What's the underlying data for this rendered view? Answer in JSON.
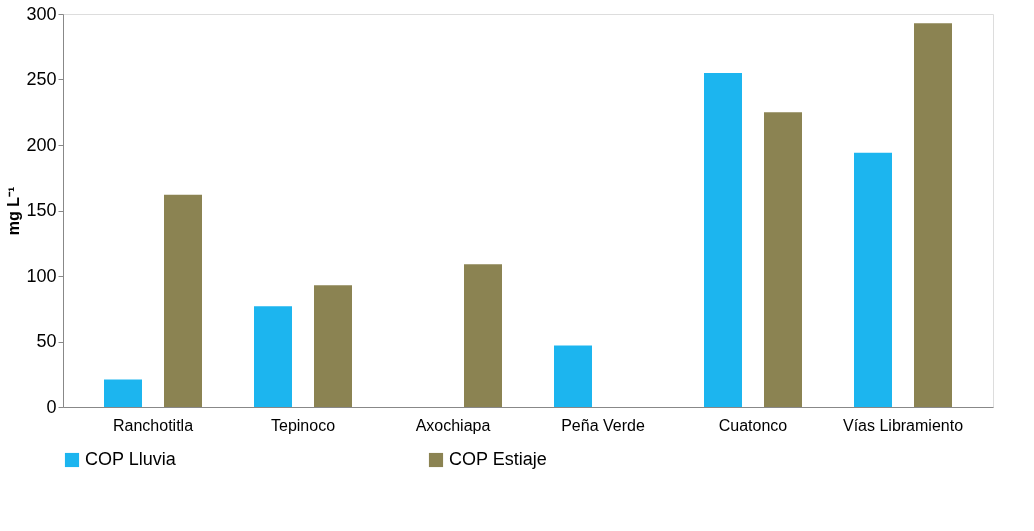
{
  "chart_data": {
    "type": "bar",
    "ylabel": "mg L⁻¹",
    "categories": [
      "Ranchotitla",
      "Tepinoco",
      "Axochiapa",
      "Peña Verde",
      "Cuatonco",
      "Vías Libramiento"
    ],
    "series": [
      {
        "name": "COP Lluvia",
        "color": "#1cb5ef",
        "values": [
          21,
          77,
          null,
          47,
          255,
          194
        ]
      },
      {
        "name": "COP Estiaje",
        "color": "#8b8352",
        "values": [
          162,
          93,
          109,
          null,
          225,
          293
        ]
      }
    ],
    "ylim": [
      0,
      300
    ],
    "yticks": [
      0,
      50,
      100,
      150,
      200,
      250,
      300
    ],
    "grid": false,
    "legend": "bottom"
  }
}
